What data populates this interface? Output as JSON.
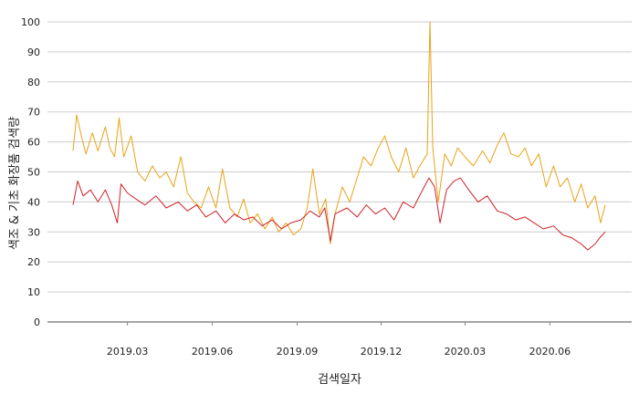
{
  "chart_data": {
    "type": "line",
    "title": "",
    "xlabel": "검색일자",
    "ylabel": "색조 & 기초 화장품 검색량",
    "x_start": "2019-01-01",
    "x_end": "2020-07-31",
    "ylim": [
      0,
      100
    ],
    "yticks": [
      "0",
      "10",
      "20",
      "30",
      "40",
      "50",
      "60",
      "70",
      "80",
      "90",
      "100"
    ],
    "xticks": [
      {
        "date": "2019-03-01",
        "label": "2019.03"
      },
      {
        "date": "2019-06-01",
        "label": "2019.06"
      },
      {
        "date": "2019-09-01",
        "label": "2019.09"
      },
      {
        "date": "2019-12-01",
        "label": "2019.12"
      },
      {
        "date": "2020-03-01",
        "label": "2020.03"
      },
      {
        "date": "2020-06-01",
        "label": "2020.06"
      }
    ],
    "grid": true,
    "legend": "none",
    "colors": {
      "series_upper": "#E8A317",
      "series_lower": "#CC2229",
      "grid": "#cccccc",
      "axis": "#888888"
    },
    "series": [
      {
        "color": "#E8A317",
        "values": [
          [
            "2019-01-01",
            57
          ],
          [
            "2019-01-05",
            69
          ],
          [
            "2019-01-10",
            62
          ],
          [
            "2019-01-15",
            56
          ],
          [
            "2019-01-22",
            63
          ],
          [
            "2019-01-28",
            57
          ],
          [
            "2019-02-05",
            65
          ],
          [
            "2019-02-10",
            58
          ],
          [
            "2019-02-15",
            55
          ],
          [
            "2019-02-20",
            68
          ],
          [
            "2019-02-25",
            55
          ],
          [
            "2019-03-05",
            62
          ],
          [
            "2019-03-12",
            50
          ],
          [
            "2019-03-20",
            47
          ],
          [
            "2019-03-28",
            52
          ],
          [
            "2019-04-05",
            48
          ],
          [
            "2019-04-12",
            50
          ],
          [
            "2019-04-20",
            45
          ],
          [
            "2019-04-28",
            55
          ],
          [
            "2019-05-05",
            43
          ],
          [
            "2019-05-12",
            40
          ],
          [
            "2019-05-20",
            38
          ],
          [
            "2019-05-28",
            45
          ],
          [
            "2019-06-05",
            38
          ],
          [
            "2019-06-12",
            51
          ],
          [
            "2019-06-20",
            38
          ],
          [
            "2019-06-28",
            35
          ],
          [
            "2019-07-05",
            41
          ],
          [
            "2019-07-12",
            33
          ],
          [
            "2019-07-20",
            36
          ],
          [
            "2019-07-28",
            31
          ],
          [
            "2019-08-05",
            35
          ],
          [
            "2019-08-12",
            30
          ],
          [
            "2019-08-20",
            33
          ],
          [
            "2019-08-28",
            29
          ],
          [
            "2019-09-05",
            31
          ],
          [
            "2019-09-12",
            38
          ],
          [
            "2019-09-18",
            51
          ],
          [
            "2019-09-25",
            36
          ],
          [
            "2019-10-02",
            41
          ],
          [
            "2019-10-07",
            26
          ],
          [
            "2019-10-12",
            36
          ],
          [
            "2019-10-20",
            45
          ],
          [
            "2019-10-28",
            40
          ],
          [
            "2019-11-05",
            48
          ],
          [
            "2019-11-12",
            55
          ],
          [
            "2019-11-20",
            52
          ],
          [
            "2019-11-28",
            58
          ],
          [
            "2019-12-05",
            62
          ],
          [
            "2019-12-12",
            55
          ],
          [
            "2019-12-20",
            50
          ],
          [
            "2019-12-28",
            58
          ],
          [
            "2020-01-05",
            48
          ],
          [
            "2020-01-12",
            52
          ],
          [
            "2020-01-20",
            56
          ],
          [
            "2020-01-23",
            100
          ],
          [
            "2020-01-26",
            58
          ],
          [
            "2020-02-01",
            40
          ],
          [
            "2020-02-08",
            56
          ],
          [
            "2020-02-15",
            52
          ],
          [
            "2020-02-22",
            58
          ],
          [
            "2020-03-01",
            55
          ],
          [
            "2020-03-10",
            52
          ],
          [
            "2020-03-20",
            57
          ],
          [
            "2020-03-28",
            53
          ],
          [
            "2020-04-05",
            59
          ],
          [
            "2020-04-12",
            63
          ],
          [
            "2020-04-20",
            56
          ],
          [
            "2020-04-28",
            55
          ],
          [
            "2020-05-05",
            58
          ],
          [
            "2020-05-12",
            52
          ],
          [
            "2020-05-20",
            56
          ],
          [
            "2020-05-28",
            45
          ],
          [
            "2020-06-05",
            52
          ],
          [
            "2020-06-12",
            45
          ],
          [
            "2020-06-20",
            48
          ],
          [
            "2020-06-28",
            40
          ],
          [
            "2020-07-05",
            46
          ],
          [
            "2020-07-12",
            38
          ],
          [
            "2020-07-20",
            42
          ],
          [
            "2020-07-26",
            33
          ],
          [
            "2020-07-31",
            39
          ]
        ]
      },
      {
        "color": "#CC2229",
        "values": [
          [
            "2019-01-01",
            39
          ],
          [
            "2019-01-06",
            47
          ],
          [
            "2019-01-12",
            42
          ],
          [
            "2019-01-20",
            44
          ],
          [
            "2019-01-28",
            40
          ],
          [
            "2019-02-05",
            44
          ],
          [
            "2019-02-12",
            39
          ],
          [
            "2019-02-18",
            33
          ],
          [
            "2019-02-22",
            46
          ],
          [
            "2019-03-01",
            43
          ],
          [
            "2019-03-10",
            41
          ],
          [
            "2019-03-20",
            39
          ],
          [
            "2019-04-01",
            42
          ],
          [
            "2019-04-12",
            38
          ],
          [
            "2019-04-25",
            40
          ],
          [
            "2019-05-05",
            37
          ],
          [
            "2019-05-15",
            39
          ],
          [
            "2019-05-25",
            35
          ],
          [
            "2019-06-05",
            37
          ],
          [
            "2019-06-15",
            33
          ],
          [
            "2019-06-25",
            36
          ],
          [
            "2019-07-05",
            34
          ],
          [
            "2019-07-15",
            35
          ],
          [
            "2019-07-25",
            32
          ],
          [
            "2019-08-05",
            34
          ],
          [
            "2019-08-15",
            31
          ],
          [
            "2019-08-25",
            33
          ],
          [
            "2019-09-05",
            34
          ],
          [
            "2019-09-15",
            37
          ],
          [
            "2019-09-25",
            35
          ],
          [
            "2019-10-01",
            38
          ],
          [
            "2019-10-07",
            27
          ],
          [
            "2019-10-12",
            36
          ],
          [
            "2019-10-25",
            38
          ],
          [
            "2019-11-05",
            35
          ],
          [
            "2019-11-15",
            39
          ],
          [
            "2019-11-25",
            36
          ],
          [
            "2019-12-05",
            38
          ],
          [
            "2019-12-15",
            34
          ],
          [
            "2019-12-25",
            40
          ],
          [
            "2020-01-05",
            38
          ],
          [
            "2020-01-15",
            44
          ],
          [
            "2020-01-22",
            48
          ],
          [
            "2020-01-28",
            45
          ],
          [
            "2020-02-03",
            33
          ],
          [
            "2020-02-10",
            44
          ],
          [
            "2020-02-18",
            47
          ],
          [
            "2020-02-25",
            48
          ],
          [
            "2020-03-05",
            44
          ],
          [
            "2020-03-15",
            40
          ],
          [
            "2020-03-25",
            42
          ],
          [
            "2020-04-05",
            37
          ],
          [
            "2020-04-15",
            36
          ],
          [
            "2020-04-25",
            34
          ],
          [
            "2020-05-05",
            35
          ],
          [
            "2020-05-15",
            33
          ],
          [
            "2020-05-25",
            31
          ],
          [
            "2020-06-05",
            32
          ],
          [
            "2020-06-15",
            29
          ],
          [
            "2020-06-25",
            28
          ],
          [
            "2020-07-05",
            26
          ],
          [
            "2020-07-12",
            24
          ],
          [
            "2020-07-20",
            26
          ],
          [
            "2020-07-25",
            28
          ],
          [
            "2020-07-31",
            30
          ]
        ]
      }
    ]
  }
}
